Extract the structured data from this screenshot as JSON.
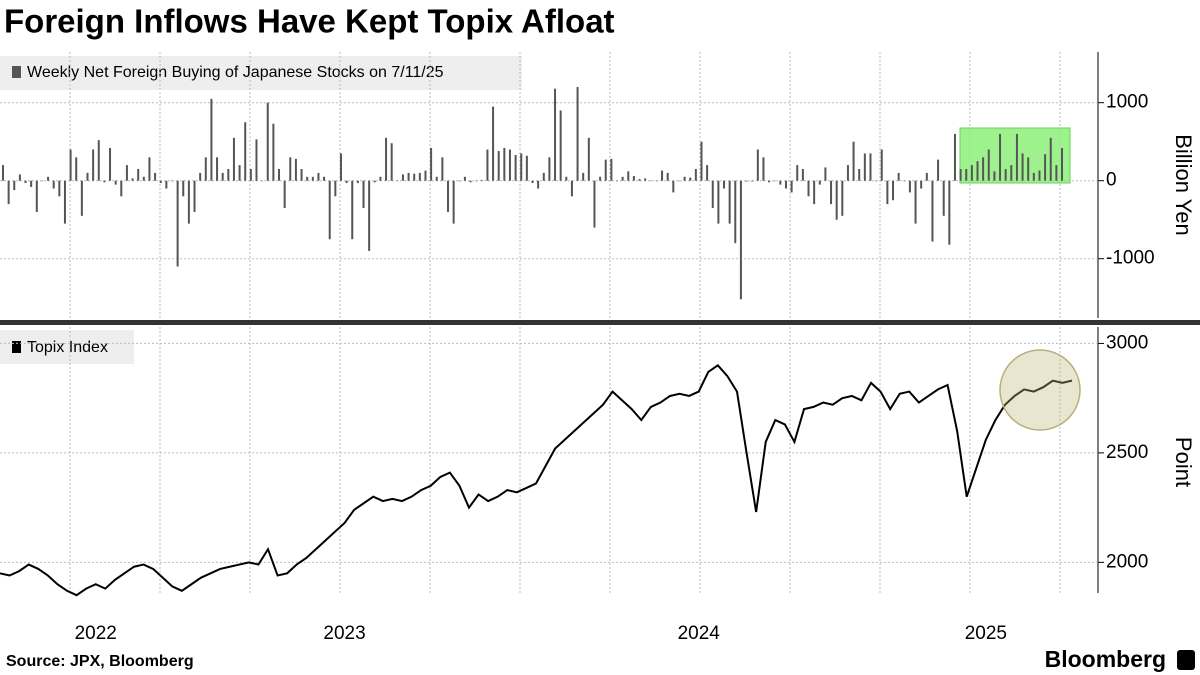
{
  "title": "Foreign Inflows Have Kept Topix Afloat",
  "source": "Source: JPX, Bloomberg",
  "brand": "Bloomberg",
  "chart_data": [
    {
      "type": "bar",
      "series_name": "Weekly Net Foreign Buying of Japanese Stocks on 7/11/25",
      "y_label": "Billion Yen",
      "color": "#555555",
      "ylim": [
        -1760,
        1650
      ],
      "yticks": [
        -1000,
        0,
        1000
      ],
      "grid": true,
      "values": [
        200,
        -300,
        -120,
        80,
        -30,
        -80,
        -400,
        0,
        50,
        -100,
        -200,
        -550,
        400,
        300,
        -450,
        100,
        400,
        520,
        -20,
        420,
        -50,
        -200,
        200,
        30,
        150,
        50,
        300,
        100,
        -30,
        -100,
        0,
        -1100,
        -200,
        -550,
        -400,
        100,
        300,
        1050,
        300,
        100,
        150,
        550,
        200,
        750,
        150,
        530,
        0,
        1000,
        730,
        150,
        -350,
        300,
        280,
        150,
        50,
        50,
        100,
        50,
        -750,
        -200,
        350,
        -30,
        -750,
        -30,
        -350,
        -900,
        -20,
        50,
        550,
        480,
        0,
        80,
        100,
        90,
        100,
        130,
        420,
        50,
        300,
        -400,
        -550,
        0,
        50,
        -20,
        0,
        10,
        400,
        950,
        380,
        420,
        400,
        330,
        350,
        320,
        -30,
        -100,
        100,
        300,
        1180,
        900,
        50,
        -200,
        1200,
        100,
        550,
        -600,
        50,
        270,
        280,
        0,
        50,
        120,
        60,
        20,
        30,
        0,
        0,
        130,
        100,
        -150,
        0,
        50,
        40,
        150,
        500,
        200,
        -350,
        -550,
        -100,
        -550,
        -800,
        -1520,
        -10,
        -10,
        400,
        300,
        -20,
        0,
        -50,
        -100,
        -150,
        200,
        150,
        -200,
        -300,
        -50,
        170,
        -300,
        -500,
        -450,
        200,
        500,
        150,
        350,
        350,
        0,
        400,
        -300,
        -250,
        100,
        0,
        -150,
        -550,
        -100,
        100,
        -780,
        270,
        -450,
        -820,
        600,
        150,
        150,
        200,
        250,
        300,
        400,
        120,
        600,
        150,
        200,
        600,
        350,
        300,
        100,
        130,
        340,
        550,
        200,
        420
      ]
    },
    {
      "type": "line",
      "series_name": "Topix Index",
      "y_label": "Point",
      "color": "#000000",
      "ylim": [
        1860,
        3075
      ],
      "yticks": [
        2000,
        2500,
        3000
      ],
      "grid": true,
      "values": [
        1950,
        1940,
        1960,
        1990,
        1970,
        1940,
        1900,
        1870,
        1850,
        1880,
        1900,
        1880,
        1920,
        1950,
        1980,
        1990,
        1970,
        1930,
        1890,
        1870,
        1900,
        1930,
        1950,
        1970,
        1980,
        1990,
        2000,
        1990,
        2060,
        1940,
        1950,
        1990,
        2020,
        2060,
        2100,
        2140,
        2180,
        2240,
        2270,
        2300,
        2280,
        2290,
        2280,
        2300,
        2330,
        2350,
        2390,
        2410,
        2350,
        2250,
        2310,
        2280,
        2300,
        2330,
        2320,
        2340,
        2360,
        2440,
        2520,
        2560,
        2600,
        2640,
        2680,
        2720,
        2780,
        2740,
        2700,
        2650,
        2710,
        2730,
        2760,
        2770,
        2760,
        2780,
        2870,
        2900,
        2850,
        2780,
        2500,
        2230,
        2550,
        2650,
        2630,
        2550,
        2700,
        2710,
        2730,
        2720,
        2750,
        2760,
        2740,
        2820,
        2780,
        2700,
        2770,
        2780,
        2730,
        2760,
        2790,
        2810,
        2600,
        2300,
        2430,
        2560,
        2650,
        2720,
        2760,
        2790,
        2780,
        2800,
        2830,
        2820,
        2830
      ],
      "categories": [
        null,
        null,
        null,
        null,
        null,
        null,
        null,
        null,
        null,
        null,
        "2022",
        null,
        null,
        null,
        null,
        null,
        null,
        null,
        null,
        null,
        null,
        null,
        null,
        null,
        null,
        null,
        null,
        null,
        null,
        null,
        null,
        null,
        null,
        null,
        null,
        null,
        "2023",
        null,
        null,
        null,
        null,
        null,
        null,
        null,
        null,
        null,
        null,
        null,
        null,
        null,
        null,
        null,
        null,
        null,
        null,
        null,
        null,
        null,
        null,
        null,
        null,
        null,
        null,
        null,
        null,
        null,
        null,
        null,
        null,
        null,
        null,
        null,
        null,
        "2024",
        null,
        null,
        null,
        null,
        null,
        null,
        null,
        null,
        null,
        null,
        null,
        null,
        null,
        null,
        null,
        null,
        null,
        null,
        null,
        null,
        null,
        null,
        null,
        null,
        null,
        null,
        null,
        null,
        null,
        "2025",
        null,
        null,
        null,
        null,
        null,
        null,
        null,
        null,
        null
      ]
    }
  ]
}
